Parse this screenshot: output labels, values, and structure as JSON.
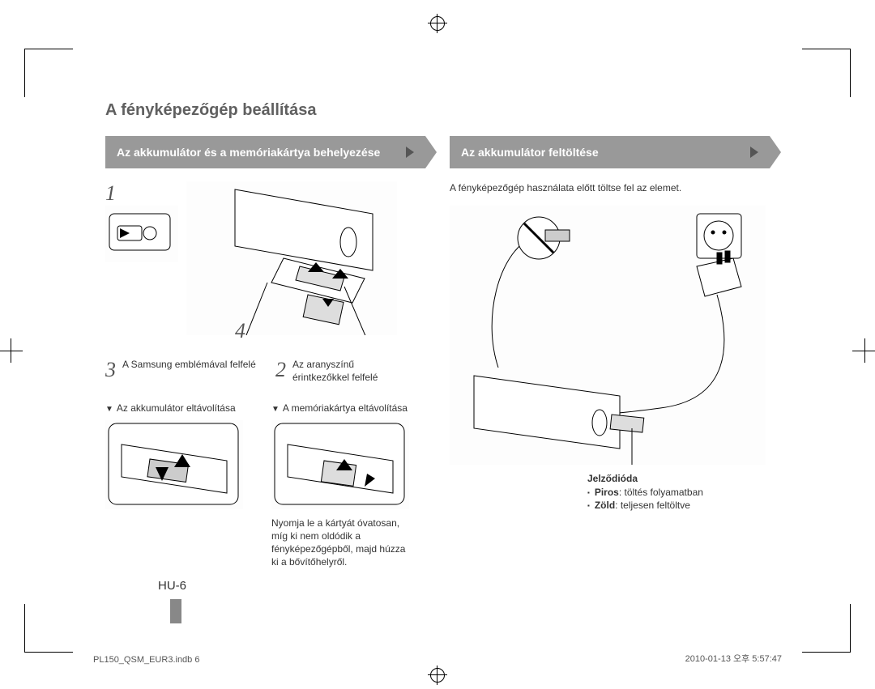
{
  "colorbar": {
    "left": [
      "#00aeef",
      "#d1d3d4",
      "#231f20",
      "#414042",
      "#58595b",
      "#6d6e71",
      "#808285",
      "#939598",
      "#a7a9ac",
      "#bcbec0",
      "#d1d3d4",
      "#e6e7e8",
      "#ffffff"
    ],
    "right": [
      "#fff200",
      "#ec008c",
      "#00aeef",
      "#ed1c24",
      "#00a651",
      "#2e3192",
      "#f7941d",
      "#f49ac1",
      "#a7a9ac",
      "#231f20"
    ]
  },
  "title": "A fényképezőgép beállítása",
  "left_section": {
    "header": "Az akkumulátor és a memóriakártya behelyezése",
    "step1_num": "1",
    "step4_num": "4",
    "step3_num": "3",
    "step3_text": "A Samsung emblémával felfelé",
    "step2_num": "2",
    "step2_text": "Az aranyszínű érintkezőkkel felfelé",
    "remove_batt": "Az akkumulátor eltávolítása",
    "remove_mem": "A memóriakártya eltávolítása",
    "mem_note": "Nyomja le a kártyát óvatosan, míg ki nem oldódik a fényképezőgépből, majd húzza ki a bővítőhelyről."
  },
  "right_section": {
    "header": "Az akkumulátor feltöltése",
    "intro": "A fényképezőgép használata előtt töltse fel az elemet.",
    "led_title": "Jelződióda",
    "led_red_label": "Piros",
    "led_red_text": ": töltés folyamatban",
    "led_green_label": "Zöld",
    "led_green_text": ": teljesen feltöltve"
  },
  "page_number": "HU-6",
  "footer_left": "PL150_QSM_EUR3.indb   6",
  "footer_right": "2010-01-13   오후 5:57:47"
}
